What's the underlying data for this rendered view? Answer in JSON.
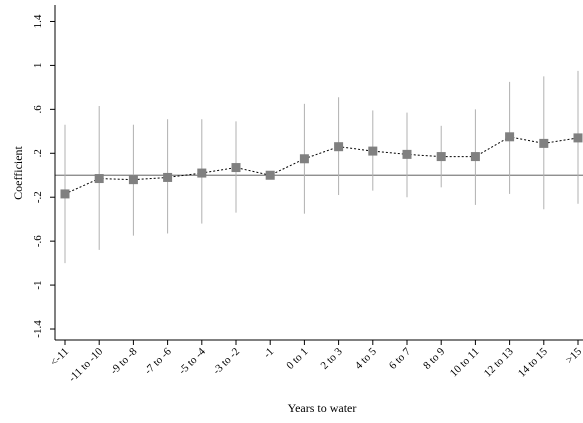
{
  "chart_data": {
    "type": "scatter",
    "xlabel": "Years to water",
    "ylabel": "Coefficient",
    "categories": [
      "<-11",
      "-11 to -10",
      "-9 to -8",
      "-7 to -6",
      "-5 to -4",
      "-3 to -2",
      "-1",
      "0 to 1",
      "2 to 3",
      "4 to 5",
      "6 to 7",
      "8 to 9",
      "10 to 11",
      "12 to 13",
      "14 to 15",
      ">15"
    ],
    "y_ticks": [
      "-1.4",
      "-1",
      "-.6",
      "-.2",
      ".2",
      ".6",
      "1",
      "1.4"
    ],
    "y_tick_values": [
      -1.4,
      -1,
      -0.6,
      -0.2,
      0.2,
      0.6,
      1,
      1.4
    ],
    "ylim": [
      -1.5,
      1.55
    ],
    "reference_line": 0,
    "series": [
      {
        "values": [
          -0.17,
          -0.03,
          -0.04,
          -0.02,
          0.02,
          0.07,
          0.0,
          0.15,
          0.26,
          0.22,
          0.19,
          0.17,
          0.17,
          0.35,
          0.29,
          0.34
        ],
        "ci_lower": [
          -0.8,
          -0.68,
          -0.55,
          -0.53,
          -0.44,
          -0.34,
          -0.02,
          -0.35,
          -0.18,
          -0.14,
          -0.2,
          -0.11,
          -0.27,
          -0.17,
          -0.31,
          -0.26
        ],
        "ci_upper": [
          0.46,
          0.63,
          0.46,
          0.51,
          0.51,
          0.49,
          0.01,
          0.65,
          0.71,
          0.59,
          0.57,
          0.45,
          0.6,
          0.85,
          0.9,
          0.95
        ]
      }
    ],
    "colors": {
      "marker": "#808080",
      "ci_line": "#b0b0b0",
      "reference_line": "#808080",
      "connector": "#000000"
    },
    "grid": false,
    "legend": "none"
  }
}
